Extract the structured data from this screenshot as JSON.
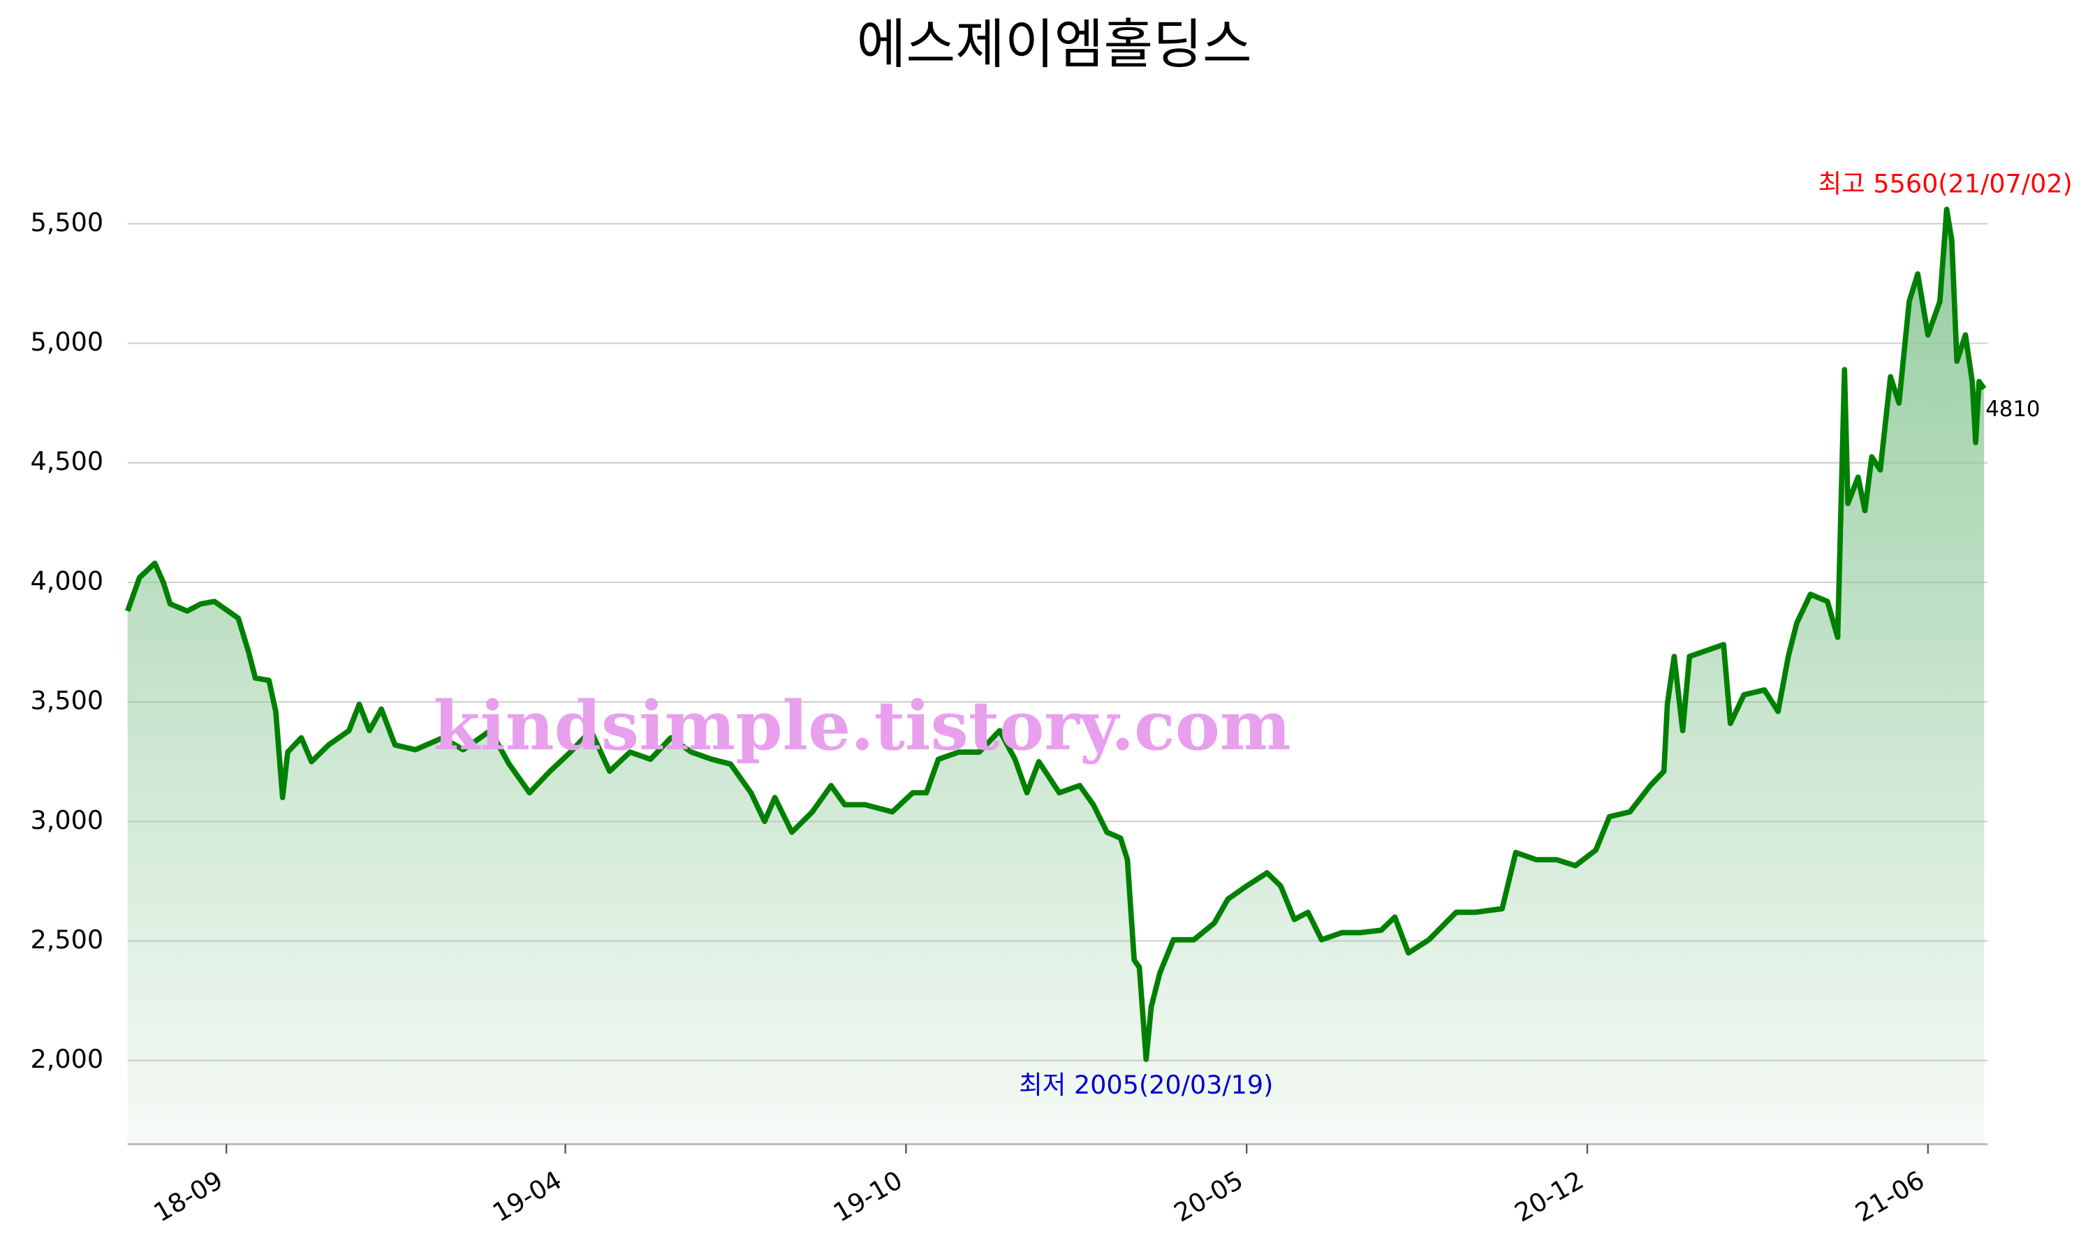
{
  "chart_data": {
    "type": "line",
    "title": "에스제이엠홀딩스",
    "x": [
      "2018-07-30",
      "2018-08-06",
      "2018-08-15",
      "2018-08-20",
      "2018-08-24",
      "2018-09-03",
      "2018-09-11",
      "2018-09-19",
      "2018-09-27",
      "2018-10-03",
      "2018-10-09",
      "2018-10-13",
      "2018-10-21",
      "2018-10-25",
      "2018-10-29",
      "2018-11-01",
      "2018-11-09",
      "2018-11-15",
      "2018-11-25",
      "2018-12-07",
      "2018-12-13",
      "2018-12-19",
      "2018-12-26",
      "2019-01-03",
      "2019-01-15",
      "2019-01-31",
      "2019-02-12",
      "2019-02-28",
      "2019-03-11",
      "2019-03-23",
      "2019-04-04",
      "2019-04-16",
      "2019-04-28",
      "2019-05-09",
      "2019-05-21",
      "2019-06-02",
      "2019-06-14",
      "2019-06-26",
      "2019-07-08",
      "2019-07-19",
      "2019-07-31",
      "2019-08-08",
      "2019-08-14",
      "2019-08-24",
      "2019-09-05",
      "2019-09-16",
      "2019-09-24",
      "2019-10-06",
      "2019-10-22",
      "2019-11-03",
      "2019-11-11",
      "2019-11-18",
      "2019-11-30",
      "2019-12-12",
      "2019-12-24",
      "2020-01-02",
      "2020-01-09",
      "2020-01-16",
      "2020-01-28",
      "2020-02-09",
      "2020-02-17",
      "2020-02-25",
      "2020-03-04",
      "2020-03-08",
      "2020-03-12",
      "2020-03-15",
      "2020-03-19",
      "2020-03-22",
      "2020-03-27",
      "2020-04-04",
      "2020-04-16",
      "2020-04-28",
      "2020-05-06",
      "2020-05-17",
      "2020-05-29",
      "2020-06-06",
      "2020-06-14",
      "2020-06-22",
      "2020-06-30",
      "2020-07-12",
      "2020-07-23",
      "2020-08-04",
      "2020-08-12",
      "2020-08-20",
      "2020-09-01",
      "2020-09-17",
      "2020-09-28",
      "2020-10-14",
      "2020-10-22",
      "2020-11-03",
      "2020-11-15",
      "2020-11-26",
      "2020-12-08",
      "2020-12-16",
      "2020-12-28",
      "2021-01-09",
      "2021-01-17",
      "2021-01-19",
      "2021-01-23",
      "2021-01-28",
      "2021-02-01",
      "2021-02-09",
      "2021-02-21",
      "2021-02-25",
      "2021-03-05",
      "2021-03-17",
      "2021-03-25",
      "2021-03-31",
      "2021-04-05",
      "2021-04-13",
      "2021-04-23",
      "2021-04-29",
      "2021-05-03",
      "2021-05-05",
      "2021-05-11",
      "2021-05-15",
      "2021-05-19",
      "2021-05-24",
      "2021-05-30",
      "2021-06-04",
      "2021-06-10",
      "2021-06-15",
      "2021-06-21",
      "2021-06-28",
      "2021-07-02",
      "2021-07-05",
      "2021-07-08",
      "2021-07-13",
      "2021-07-17",
      "2021-07-19",
      "2021-07-21",
      "2021-07-24"
    ],
    "series": [
      {
        "color": "#008000",
        "fill": "#8fc99a",
        "values": [
          3880,
          4020,
          4080,
          4000,
          3910,
          3880,
          3910,
          3920,
          3880,
          3850,
          3710,
          3600,
          3590,
          3460,
          3100,
          3290,
          3350,
          3250,
          3320,
          3380,
          3490,
          3380,
          3470,
          3320,
          3300,
          3350,
          3300,
          3380,
          3240,
          3120,
          3210,
          3290,
          3380,
          3210,
          3290,
          3260,
          3350,
          3290,
          3260,
          3240,
          3120,
          3000,
          3100,
          2955,
          3040,
          3150,
          3070,
          3070,
          3040,
          3120,
          3120,
          3260,
          3290,
          3290,
          3380,
          3260,
          3120,
          3250,
          3120,
          3150,
          3070,
          2955,
          2930,
          2840,
          2420,
          2390,
          2005,
          2225,
          2365,
          2505,
          2505,
          2575,
          2675,
          2730,
          2785,
          2730,
          2590,
          2620,
          2505,
          2535,
          2535,
          2545,
          2600,
          2450,
          2505,
          2620,
          2620,
          2635,
          2870,
          2840,
          2840,
          2815,
          2880,
          3020,
          3040,
          3150,
          3210,
          3490,
          3690,
          3380,
          3690,
          3710,
          3740,
          3410,
          3530,
          3550,
          3460,
          3690,
          3830,
          3950,
          3920,
          3770,
          4890,
          4330,
          4440,
          4300,
          4525,
          4470,
          4860,
          4750,
          5175,
          5290,
          5035,
          5175,
          5560,
          5430,
          4925,
          5035,
          4840,
          4585,
          4840,
          4810
        ]
      }
    ],
    "xlim": [
      "2018-07-30",
      "2021-07-26"
    ],
    "xticks": [
      {
        "value": "2018-09-26",
        "label": "18-09"
      },
      {
        "value": "2019-04-13",
        "label": "19-04"
      },
      {
        "value": "2019-10-30",
        "label": "19-10"
      },
      {
        "value": "2020-05-17",
        "label": "20-05"
      },
      {
        "value": "2020-12-03",
        "label": "20-12"
      },
      {
        "value": "2021-06-21",
        "label": "21-06"
      }
    ],
    "ylim": [
      1650,
      5700
    ],
    "yticks": [
      {
        "value": 2000,
        "label": "2,000"
      },
      {
        "value": 2500,
        "label": "2,500"
      },
      {
        "value": 3000,
        "label": "3,000"
      },
      {
        "value": 3500,
        "label": "3,500"
      },
      {
        "value": 4000,
        "label": "4,000"
      },
      {
        "value": 4500,
        "label": "4,500"
      },
      {
        "value": 5000,
        "label": "5,000"
      },
      {
        "value": 5500,
        "label": "5,500"
      }
    ],
    "grid": true,
    "annotations": {
      "max": {
        "text": "최고 5560(21/07/02)",
        "color": "#ff0000"
      },
      "min": {
        "text": "최저 2005(20/03/19)",
        "color": "#0000cc"
      },
      "last": {
        "text": "4810",
        "color": "#000000"
      }
    },
    "watermark": {
      "text": "kindsimple.tistory.com",
      "color": "#e8a0ee"
    }
  }
}
